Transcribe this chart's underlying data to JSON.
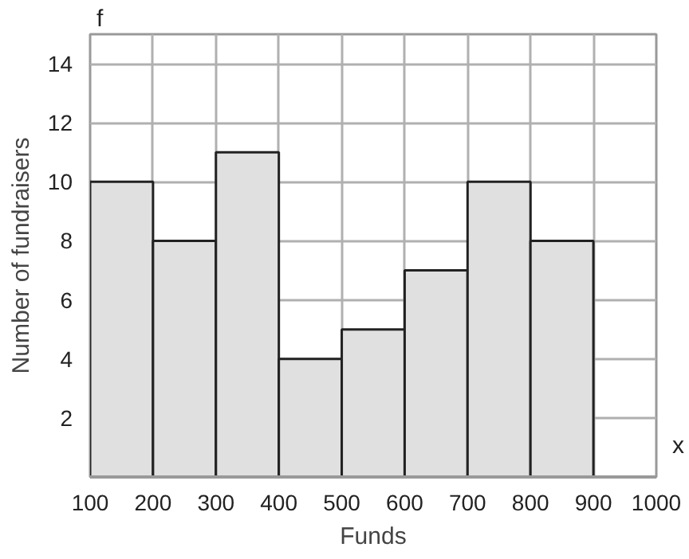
{
  "chart_data": {
    "type": "histogram",
    "xlabel": "Funds",
    "ylabel": "Number of fundraisers",
    "annotations": [
      "f",
      "x"
    ],
    "bins": [
      100,
      200,
      300,
      400,
      500,
      600,
      700,
      800,
      900
    ],
    "values": [
      10,
      8,
      11,
      4,
      5,
      7,
      10,
      8
    ],
    "color": "#e0e0e0",
    "xlim": [
      100,
      1000
    ],
    "xticks": [
      100,
      200,
      300,
      400,
      500,
      600,
      700,
      800,
      900,
      1000
    ],
    "ylim": [
      0,
      15
    ],
    "yticks": [
      2,
      4,
      6,
      8,
      10,
      12,
      14
    ],
    "grid": true
  }
}
